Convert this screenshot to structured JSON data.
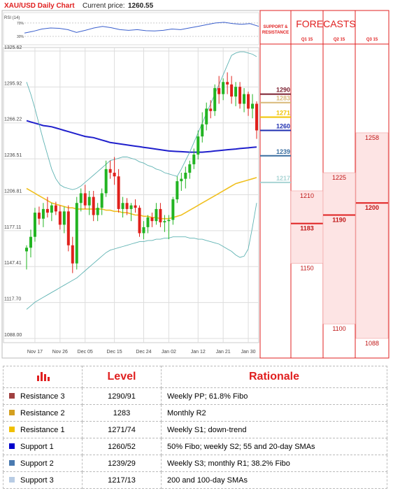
{
  "chart_data": [
    {
      "type": "candlestick",
      "title": "XAU/USD Daily Chart",
      "price_label": "Current price:",
      "price": 1260.55,
      "categories": [
        null,
        null,
        "Nov 17",
        null,
        null,
        null,
        null,
        null,
        "Nov 26",
        null,
        null,
        null,
        null,
        null,
        "Dec 05",
        null,
        null,
        null,
        null,
        null,
        null,
        "Dec 15",
        null,
        null,
        null,
        null,
        null,
        null,
        "Dec 24",
        null,
        null,
        null,
        null,
        null,
        "Jan 02",
        null,
        null,
        null,
        null,
        null,
        null,
        "Jan 12",
        null,
        null,
        null,
        null,
        null,
        "Jan 21",
        null,
        null,
        null,
        null,
        null,
        "Jan 30",
        null,
        null
      ],
      "open": [
        1160,
        1163,
        1172,
        1192,
        1187,
        1195,
        1192,
        1198,
        1193,
        1182,
        1193,
        1165,
        1150,
        1200,
        1208,
        1198,
        1205,
        1190,
        1196,
        1208,
        1228,
        1225,
        1222,
        1195,
        1200,
        1195,
        1198,
        1196,
        1175,
        1180,
        1188,
        1185,
        1195,
        1184,
        1185,
        1186,
        1203,
        1218,
        1220,
        1225,
        1232,
        1240,
        1255,
        1265,
        1278,
        1276,
        1295,
        1290,
        1300,
        1298,
        1288,
        1296,
        1282,
        1290,
        1278,
        1282
      ],
      "high": [
        1165,
        1178,
        1196,
        1197,
        1200,
        1205,
        1200,
        1201,
        1198,
        1197,
        1198,
        1172,
        1205,
        1212,
        1215,
        1210,
        1210,
        1200,
        1212,
        1235,
        1235,
        1238,
        1228,
        1205,
        1204,
        1200,
        1203,
        1198,
        1185,
        1190,
        1192,
        1200,
        1200,
        1190,
        1190,
        1205,
        1222,
        1225,
        1230,
        1235,
        1245,
        1260,
        1275,
        1283,
        1285,
        1298,
        1305,
        1303,
        1308,
        1305,
        1300,
        1300,
        1295,
        1292,
        1290,
        1284
      ],
      "low": [
        1145,
        1155,
        1168,
        1182,
        1180,
        1188,
        1185,
        1190,
        1178,
        1175,
        1160,
        1142,
        1145,
        1193,
        1195,
        1190,
        1185,
        1185,
        1190,
        1205,
        1220,
        1215,
        1192,
        1188,
        1190,
        1185,
        1192,
        1172,
        1170,
        1175,
        1180,
        1182,
        1180,
        1176,
        1170,
        1182,
        1200,
        1210,
        1212,
        1220,
        1228,
        1236,
        1250,
        1260,
        1270,
        1272,
        1282,
        1285,
        1290,
        1282,
        1280,
        1278,
        1275,
        1272,
        1270,
        1253
      ],
      "close": [
        1163,
        1172,
        1192,
        1187,
        1195,
        1192,
        1198,
        1193,
        1182,
        1193,
        1165,
        1150,
        1200,
        1208,
        1198,
        1205,
        1190,
        1196,
        1208,
        1228,
        1225,
        1222,
        1195,
        1200,
        1195,
        1198,
        1196,
        1175,
        1180,
        1188,
        1185,
        1195,
        1184,
        1185,
        1186,
        1203,
        1218,
        1220,
        1225,
        1232,
        1240,
        1255,
        1265,
        1278,
        1276,
        1295,
        1290,
        1300,
        1298,
        1288,
        1296,
        1282,
        1290,
        1278,
        1282,
        1260
      ],
      "up_color": "#22b422",
      "down_color": "#e0201b",
      "overlays": [
        {
          "color": "#1f1fcc",
          "values": [
            1268,
            1267,
            1266,
            1265,
            1264,
            1263.5,
            1263,
            1262,
            1261,
            1260,
            1259,
            1258,
            1257,
            1256,
            1255,
            1254.5,
            1254,
            1253,
            1252,
            1251,
            1250,
            1249.5,
            1249,
            1248.5,
            1248,
            1247.5,
            1247,
            1246.5,
            1246,
            1245.5,
            1245,
            1244.5,
            1244,
            1243.5,
            1243,
            1242.8,
            1242.6,
            1242.4,
            1242.2,
            1242,
            1242,
            1242,
            1242,
            1242.3,
            1242.6,
            1243,
            1243.3,
            1243.6,
            1244,
            1244.3,
            1244.6,
            1245,
            1245.3,
            1245.6,
            1246,
            1246.3
          ]
        },
        {
          "color": "#f0c020",
          "values": [
            1212,
            1210,
            1208,
            1206,
            1204,
            1202,
            1200,
            1199,
            1198,
            1197,
            1196,
            1196,
            1195,
            1195,
            1195,
            1195,
            1195,
            1195,
            1195,
            1194,
            1194,
            1193,
            1193,
            1192,
            1192,
            1191,
            1190,
            1190,
            1189,
            1189,
            1188,
            1188,
            1187,
            1187,
            1187,
            1188,
            1189,
            1190,
            1192,
            1194,
            1196,
            1198,
            1200,
            1202,
            1204,
            1206,
            1208,
            1210,
            1212,
            1214,
            1216,
            1217,
            1218,
            1219,
            1220,
            1221
          ]
        },
        {
          "color": "#5fb3b3",
          "values": [
            1300,
            1290,
            1278,
            1265,
            1252,
            1240,
            1228,
            1220,
            1215,
            1213,
            1212,
            1211,
            1212,
            1214,
            1217,
            1220,
            1223,
            1226,
            1229,
            1232,
            1235,
            1236,
            1237,
            1238,
            1238,
            1237,
            1236,
            1234,
            1233,
            1231,
            1230,
            1228,
            1227,
            1225,
            1224,
            1223,
            1222,
            1228,
            1235,
            1242,
            1250,
            1258,
            1266,
            1274,
            1282,
            1290,
            1298,
            1306,
            1314,
            1322,
            1324,
            1325,
            1325,
            1324,
            1323,
            1321
          ]
        },
        {
          "color": "#5fb3b3",
          "values": [
            1112,
            1115,
            1118,
            1120,
            1122,
            1124,
            1126,
            1128,
            1130,
            1132,
            1134,
            1136,
            1138,
            1141,
            1144,
            1147,
            1150,
            1153,
            1156,
            1159,
            1161,
            1162,
            1163,
            1164,
            1165,
            1166,
            1167,
            1168,
            1168,
            1169,
            1169,
            1170,
            1170,
            1171,
            1171,
            1172,
            1172,
            1172,
            1172,
            1171,
            1171,
            1170,
            1170,
            1169,
            1168,
            1167,
            1166,
            1164,
            1162,
            1160,
            1157,
            1155,
            1156,
            1162,
            1180,
            1200
          ]
        }
      ],
      "ylim": [
        1084.5,
        1328.5
      ],
      "yticks": [
        1325.62,
        1295.92,
        1266.22,
        1236.51,
        1206.81,
        1177.11,
        1147.41,
        {
          "value": 1117.7,
          "label": "1117.70"
        },
        {
          "value": 1088,
          "label": "1088.00"
        }
      ],
      "grid": true
    },
    {
      "type": "line",
      "title": "RSI (14)",
      "color": "#3a5fcd",
      "values": [
        40,
        45,
        52,
        55,
        54,
        50,
        42,
        48,
        55,
        60,
        56,
        50,
        48,
        50,
        47,
        46,
        48,
        52,
        50,
        55,
        60,
        65,
        70,
        72,
        68,
        66,
        68,
        60
      ],
      "ylim": [
        9,
        97
      ],
      "yticks": [
        {
          "value": 70,
          "label": "70%"
        },
        {
          "value": 30,
          "label": "30%"
        }
      ]
    },
    {
      "type": "forecast",
      "title": "FORECASTS",
      "sr_title": "SUPPORT & RESISTANCE",
      "levels": [
        {
          "value": 1290,
          "color": "#7b1f2f"
        },
        {
          "value": 1283,
          "color": "#d8b878"
        },
        {
          "value": 1271,
          "color": "#f0c400"
        },
        {
          "value": 1260,
          "color": "#1f2fb0"
        },
        {
          "value": 1239,
          "color": "#3a6ea0"
        },
        {
          "value": 1217,
          "color": "#a8d4d4"
        }
      ],
      "columns": [
        {
          "name": "Q1 15",
          "high": 1210,
          "low": 1150,
          "mid": 1183
        },
        {
          "name": "Q2 15",
          "high": 1225,
          "low": 1100,
          "mid": 1190
        },
        {
          "name": "Q3 15",
          "high": 1258,
          "low": 1088,
          "mid": 1200
        }
      ],
      "color": "#e02020",
      "fill": "#fde4e4",
      "ylim": [
        1084.5,
        1328.5
      ]
    }
  ],
  "table": {
    "header": [
      "Level",
      "Rationale"
    ],
    "rows": [
      {
        "name": "Resistance 3",
        "level": "1290/91",
        "rationale": "Weekly PP; 61.8% Fibo",
        "color": "#a04040"
      },
      {
        "name": "Resistance 2",
        "level": "1283",
        "rationale": "Monthly R2",
        "color": "#d4a020"
      },
      {
        "name": "Resistance 1",
        "level": "1271/74",
        "rationale": "Weekly S1; down-trend",
        "color": "#f0c000"
      },
      {
        "name": "Support 1",
        "level": "1260/52",
        "rationale": "50% Fibo; weekly S2; 55 and 20-day SMAs",
        "color": "#0000cc"
      },
      {
        "name": "Support 2",
        "level": "1239/29",
        "rationale": "Weekly S3; monthly R1; 38.2% Fibo",
        "color": "#4a7ab0"
      },
      {
        "name": "Support 3",
        "level": "1217/13",
        "rationale": "200 and 100-day SMAs",
        "color": "#b8cce4"
      }
    ]
  }
}
